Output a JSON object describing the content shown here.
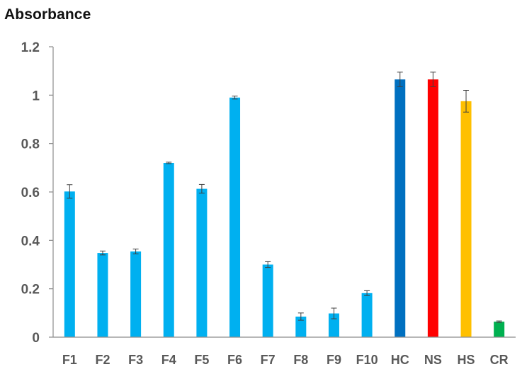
{
  "chart_data": {
    "type": "bar",
    "ylabel": "Absorbance",
    "xlabel": "",
    "title": "",
    "ylim": [
      0,
      1.2
    ],
    "yticks": [
      "0",
      "0.2",
      "0.4",
      "0.6",
      "0.8",
      "1",
      "1.2"
    ],
    "ytick_values": [
      0,
      0.2,
      0.4,
      0.6,
      0.8,
      1.0,
      1.2
    ],
    "grid": false,
    "legend": "none",
    "categories": [
      "F1",
      "F2",
      "F3",
      "F4",
      "F5",
      "F6",
      "F7",
      "F8",
      "F9",
      "F10",
      "HC",
      "NS",
      "HS",
      "CR"
    ],
    "values": [
      0.602,
      0.348,
      0.354,
      0.72,
      0.613,
      0.99,
      0.3,
      0.085,
      0.098,
      0.182,
      1.065,
      1.065,
      0.975,
      0.064
    ],
    "errors": [
      0.028,
      0.008,
      0.01,
      0.003,
      0.018,
      0.006,
      0.012,
      0.015,
      0.022,
      0.01,
      0.03,
      0.03,
      0.045,
      0.003
    ],
    "colors": [
      "#00b0f0",
      "#00b0f0",
      "#00b0f0",
      "#00b0f0",
      "#00b0f0",
      "#00b0f0",
      "#00b0f0",
      "#00b0f0",
      "#00b0f0",
      "#00b0f0",
      "#0070c0",
      "#ff0000",
      "#ffc000",
      "#00b050"
    ],
    "axis_color": "#8c8c8c",
    "tick_label_color": "#595959"
  }
}
